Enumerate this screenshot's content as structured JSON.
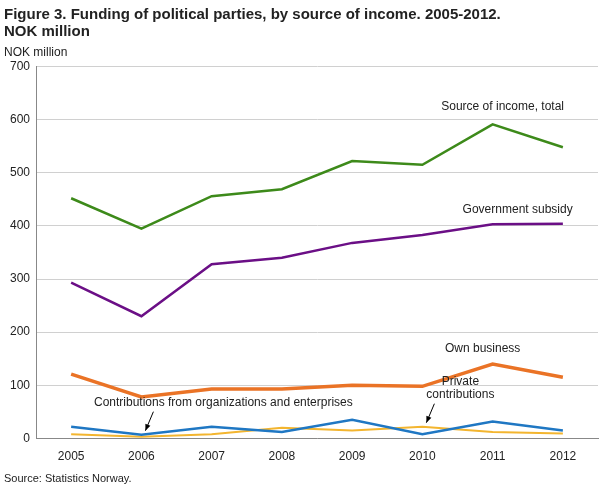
{
  "chart_data": {
    "type": "line",
    "title": [
      "Figure 3. Funding of political parties, by source of income. 2005-2012.",
      "NOK million"
    ],
    "ylabel": "NOK million",
    "source": "Source: Statistics Norway.",
    "categories": [
      "2005",
      "2006",
      "2007",
      "2008",
      "2009",
      "2010",
      "2011",
      "2012"
    ],
    "series": [
      {
        "name": "Source of income, total",
        "color": "#3d8a1a",
        "values": [
          452,
          395,
          456,
          469,
          522,
          515,
          591,
          548
        ]
      },
      {
        "name": "Government subsidy",
        "color": "#6b0f86",
        "values": [
          293,
          230,
          328,
          340,
          368,
          383,
          403,
          404
        ]
      },
      {
        "name": "Own business",
        "color": "#ea7326",
        "values": [
          121,
          78,
          93,
          93,
          100,
          98,
          140,
          115
        ]
      },
      {
        "name": "Contributions from organizations and enterprises",
        "color": "#1f77c3",
        "values": [
          22,
          7,
          22,
          12,
          35,
          8,
          32,
          15
        ]
      },
      {
        "name": "Private contributions",
        "color": "#f3b52f",
        "values": [
          8,
          3,
          8,
          20,
          15,
          22,
          12,
          9
        ]
      }
    ],
    "ylim": [
      0,
      700
    ],
    "yticks": [
      0,
      100,
      200,
      300,
      400,
      500,
      600,
      700
    ],
    "grid": true
  }
}
